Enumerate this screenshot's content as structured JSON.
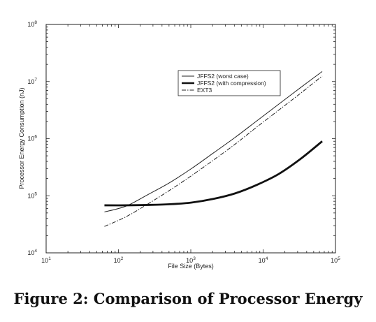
{
  "caption": "Figure 2: Comparison of Processor Energy",
  "chart_data": {
    "type": "line",
    "xlabel": "File Size (Bytes)",
    "ylabel": "Processor Energy Consumption (nJ)",
    "xscale": "log",
    "yscale": "log",
    "xlim": [
      10,
      100000
    ],
    "ylim": [
      10000,
      100000000
    ],
    "x_ticks": [
      10,
      100,
      1000,
      10000,
      100000
    ],
    "y_ticks": [
      10000,
      100000,
      1000000,
      10000000,
      100000000
    ],
    "x_tick_labels": [
      {
        "base": "10",
        "exp": "1"
      },
      {
        "base": "10",
        "exp": "2"
      },
      {
        "base": "10",
        "exp": "3"
      },
      {
        "base": "10",
        "exp": "4"
      },
      {
        "base": "10",
        "exp": "5"
      }
    ],
    "y_tick_labels": [
      {
        "base": "10",
        "exp": "4"
      },
      {
        "base": "10",
        "exp": "5"
      },
      {
        "base": "10",
        "exp": "6"
      },
      {
        "base": "10",
        "exp": "7"
      },
      {
        "base": "10",
        "exp": "8"
      }
    ],
    "grid": false,
    "legend_position": "upper-right",
    "series": [
      {
        "name": "JFFS2 (worst case)",
        "style": "thin-solid",
        "x": [
          64,
          128,
          256,
          512,
          1024,
          2048,
          4096,
          8192,
          16384,
          32768,
          65536
        ],
        "y": [
          52000,
          66000,
          105000,
          170000,
          300000,
          560000,
          1050000,
          2050000,
          4000000,
          7800000,
          15000000
        ]
      },
      {
        "name": "JFFS2 (with compression)",
        "style": "thick-solid",
        "x": [
          64,
          128,
          256,
          512,
          1024,
          2048,
          4096,
          8192,
          16384,
          32768,
          65536
        ],
        "y": [
          68000,
          68000,
          69000,
          71000,
          76000,
          88000,
          110000,
          155000,
          240000,
          440000,
          900000
        ]
      },
      {
        "name": "EXT3",
        "style": "dash-dot",
        "x": [
          64,
          128,
          256,
          512,
          1024,
          2048,
          4096,
          8192,
          16384,
          32768,
          65536
        ],
        "y": [
          29000,
          43000,
          72000,
          125000,
          225000,
          420000,
          800000,
          1600000,
          3150000,
          6200000,
          12500000
        ]
      }
    ]
  }
}
